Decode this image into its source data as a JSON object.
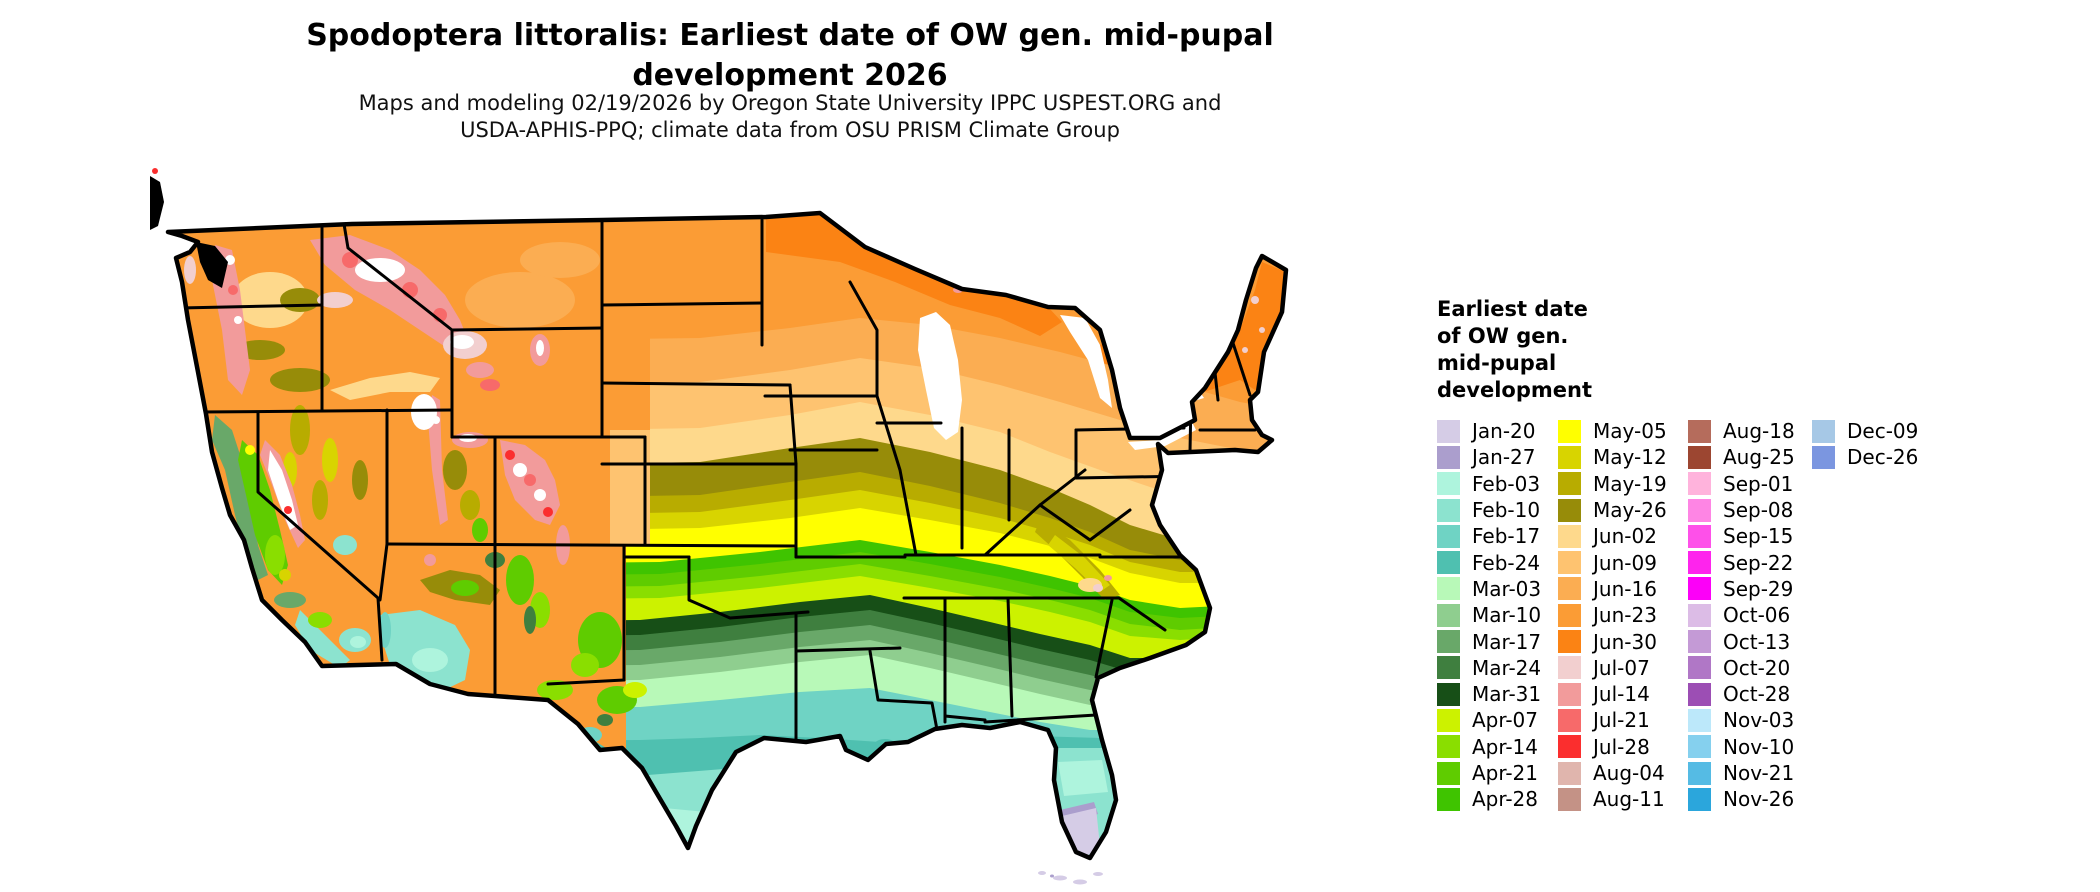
{
  "header": {
    "title_lines": [
      "Spodoptera littoralis: Earliest date of OW gen. mid-pupal",
      "development 2026"
    ],
    "subtitle_lines": [
      "Maps and modeling 02/19/2026 by Oregon State University IPPC USPEST.ORG and",
      "USDA-APHIS-PPQ; climate data from OSU PRISM Climate Group"
    ]
  },
  "legend": {
    "title_lines": [
      "Earliest date",
      "of OW gen.",
      "mid-pupal",
      "development"
    ],
    "columns": [
      [
        "Jan-20",
        "Jan-27",
        "Feb-03",
        "Feb-10",
        "Feb-17",
        "Feb-24",
        "Mar-03",
        "Mar-10",
        "Mar-17",
        "Mar-24",
        "Mar-31",
        "Apr-07",
        "Apr-14",
        "Apr-21",
        "Apr-28"
      ],
      [
        "May-05",
        "May-12",
        "May-19",
        "May-26",
        "Jun-02",
        "Jun-09",
        "Jun-16",
        "Jun-23",
        "Jun-30",
        "Jul-07",
        "Jul-14",
        "Jul-21",
        "Jul-28",
        "Aug-04",
        "Aug-11"
      ],
      [
        "Aug-18",
        "Aug-25",
        "Sep-01",
        "Sep-08",
        "Sep-15",
        "Sep-22",
        "Sep-29",
        "Oct-06",
        "Oct-13",
        "Oct-20",
        "Oct-28",
        "Nov-03",
        "Nov-10",
        "Nov-21",
        "Nov-26"
      ],
      [
        "Dec-09",
        "Dec-26"
      ]
    ]
  },
  "colors": {
    "Jan-20": "#d5cce6",
    "Jan-27": "#ab9ecd",
    "Feb-03": "#aef4dd",
    "Feb-10": "#8ce3cf",
    "Feb-17": "#6fd3c4",
    "Feb-24": "#4fc0b0",
    "Mar-03": "#b8f9b8",
    "Mar-10": "#8fce8f",
    "Mar-17": "#69a869",
    "Mar-24": "#3f7f3f",
    "Mar-31": "#174f17",
    "Apr-07": "#ccf200",
    "Apr-14": "#8ade00",
    "Apr-21": "#5fcc00",
    "Apr-28": "#3fc400",
    "May-05": "#ffff00",
    "May-12": "#d8d400",
    "May-19": "#b8ac00",
    "May-26": "#978c09",
    "Jun-02": "#fed98c",
    "Jun-09": "#fec370",
    "Jun-16": "#fbad52",
    "Jun-23": "#fb9c35",
    "Jun-30": "#fb8314",
    "Jul-07": "#f2cfcf",
    "Jul-14": "#f29b9b",
    "Jul-21": "#f76a6a",
    "Jul-28": "#fb2e2e",
    "Aug-04": "#e0b5ad",
    "Aug-11": "#c49286",
    "Aug-18": "#b56c5c",
    "Aug-25": "#9c4631",
    "Sep-01": "#ffb3dc",
    "Sep-08": "#fe85e4",
    "Sep-15": "#fe50e9",
    "Sep-22": "#fe24ed",
    "Sep-29": "#fc00f8",
    "Oct-06": "#dcbce6",
    "Oct-13": "#c49ad6",
    "Oct-20": "#b077c6",
    "Oct-28": "#9c4eb4",
    "Nov-03": "#bce8fa",
    "Nov-10": "#85d0ee",
    "Nov-21": "#55bbe4",
    "Nov-26": "#2ba6dc",
    "Dec-09": "#a6c8e6",
    "Dec-26": "#7b96e0"
  },
  "map": {
    "region": "Contiguous United States",
    "variable": "Earliest date of OW gen. mid-pupal development",
    "pattern": "Earliest dates (Jan-Feb, lavender/teal) in south Florida, south Texas and the desert Southwest; Mar-Apr greens across the South; May yellows and olives across the mid-latitudes; June oranges across the northern tier; July pinks/reds and later (white) at high mountain elevations."
  }
}
